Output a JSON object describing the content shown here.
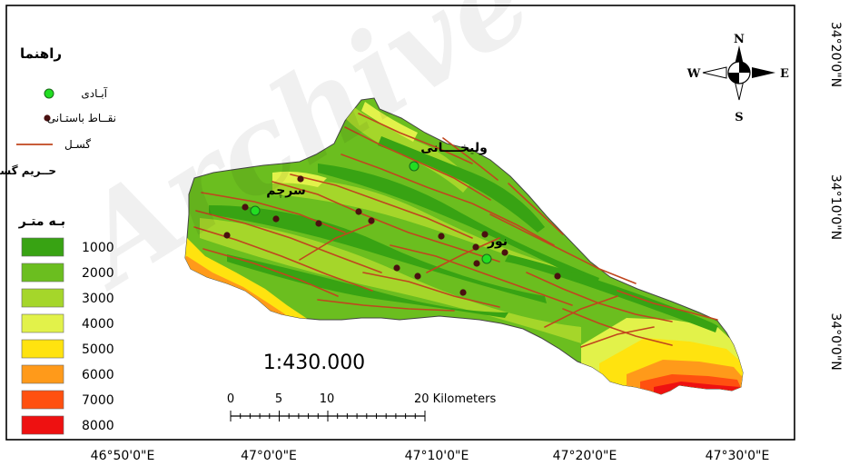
{
  "watermark": "Archive",
  "legend": {
    "title": "راهنما",
    "settlement_label": "آبـادی",
    "sites_label": "نقــاط باستـانی",
    "fault_label": "گسـل",
    "buffer_label": "حــریم گســل",
    "units_label": "بـه  متـر",
    "classes": [
      {
        "value": "1000",
        "color": "#38a313"
      },
      {
        "value": "2000",
        "color": "#6bbe1f"
      },
      {
        "value": "3000",
        "color": "#a5d62a"
      },
      {
        "value": "4000",
        "color": "#e2f24a"
      },
      {
        "value": "5000",
        "color": "#ffe30f"
      },
      {
        "value": "6000",
        "color": "#ff9a1a"
      },
      {
        "value": "7000",
        "color": "#ff5010"
      },
      {
        "value": "8000",
        "color": "#ee1111"
      }
    ],
    "settlement_color": "#22dd22",
    "site_color": "#4a1010",
    "fault_color": "#c0461e"
  },
  "scale": {
    "ratio": "1:430.000",
    "ticks": [
      "0",
      "5",
      "10",
      "20 Kilometers"
    ]
  },
  "north_arrow": {
    "n": "N",
    "s": "S",
    "e": "E",
    "w": "W"
  },
  "longitudes": [
    "46°50'0\"E",
    "47°0'0\"E",
    "47°10'0\"E",
    "47°20'0\"E",
    "47°30'0\"E"
  ],
  "latitudes": [
    "34°20'0\"N",
    "34°10'0\"N",
    "34°0'0\"N"
  ],
  "places": {
    "valikhani": "ولیخــــانی",
    "sarcham": "سرچم",
    "noor": "نور"
  }
}
